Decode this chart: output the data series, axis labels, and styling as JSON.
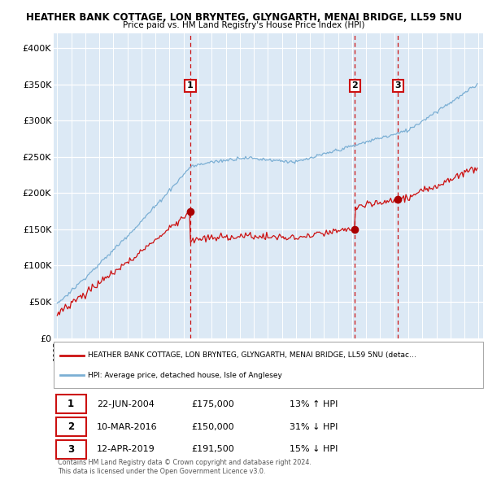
{
  "title1": "HEATHER BANK COTTAGE, LON BRYNTEG, GLYNGARTH, MENAI BRIDGE, LL59 5NU",
  "title2": "Price paid vs. HM Land Registry's House Price Index (HPI)",
  "bg_color": "#dce9f5",
  "red_line_label": "HEATHER BANK COTTAGE, LON BRYNTEG, GLYNGARTH, MENAI BRIDGE, LL59 5NU (detac…",
  "blue_line_label": "HPI: Average price, detached house, Isle of Anglesey",
  "sale1_date": "22-JUN-2004",
  "sale1_price": 175000,
  "sale1_hpi": "13% ↑ HPI",
  "sale2_date": "10-MAR-2016",
  "sale2_price": 150000,
  "sale2_hpi": "31% ↓ HPI",
  "sale3_date": "12-APR-2019",
  "sale3_price": 191500,
  "sale3_hpi": "15% ↓ HPI",
  "footer1": "Contains HM Land Registry data © Crown copyright and database right 2024.",
  "footer2": "This data is licensed under the Open Government Licence v3.0.",
  "ylim": [
    0,
    420000
  ],
  "yticks": [
    0,
    50000,
    100000,
    150000,
    200000,
    250000,
    300000,
    350000,
    400000
  ],
  "ytick_labels": [
    "£0",
    "£50K",
    "£100K",
    "£150K",
    "£200K",
    "£250K",
    "£300K",
    "£350K",
    "£400K"
  ]
}
